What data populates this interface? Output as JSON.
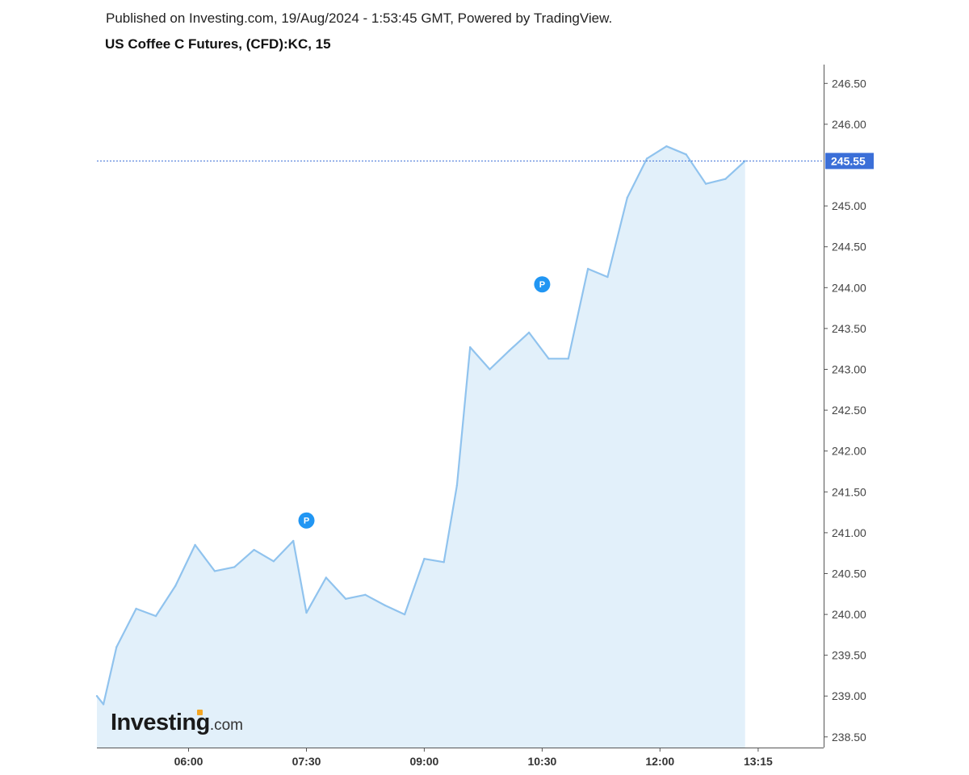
{
  "header": {
    "published": "Published on Investing.com, 19/Aug/2024 - 1:53:45 GMT, Powered by TradingView.",
    "title": "US Coffee C Futures, (CFD):KC, 15"
  },
  "logo": {
    "main": "Investing",
    "suffix": ".com",
    "accent_color": "#f5a623"
  },
  "colors": {
    "line": "#90c3ee",
    "fill": "#e2f0fa",
    "last_price": "#3b6fd8",
    "marker": "#2196f3",
    "axis": "#555555"
  },
  "markers": [
    {
      "label": "P",
      "time_min": 450,
      "price": 241.15
    },
    {
      "label": "P",
      "time_min": 630,
      "price": 244.04
    }
  ],
  "chart_data": {
    "type": "area",
    "title": "US Coffee C Futures, (CFD):KC, 15",
    "x_unit": "minutes since 00:00",
    "x": [
      290,
      295,
      305,
      320,
      335,
      350,
      365,
      380,
      395,
      410,
      425,
      440,
      450,
      465,
      480,
      495,
      510,
      525,
      540,
      555,
      565,
      575,
      590,
      605,
      620,
      635,
      650,
      665,
      680,
      695,
      710,
      725,
      740,
      755,
      770,
      785
    ],
    "y": [
      239.0,
      238.9,
      239.6,
      240.07,
      239.98,
      240.35,
      240.85,
      240.53,
      240.58,
      240.79,
      240.65,
      240.9,
      240.02,
      240.45,
      240.19,
      240.24,
      240.11,
      240.0,
      240.68,
      240.64,
      241.58,
      243.27,
      243.0,
      243.23,
      243.45,
      243.13,
      243.13,
      244.23,
      244.13,
      245.1,
      245.58,
      245.73,
      245.63,
      245.27,
      245.33,
      245.55
    ],
    "last_price": "245.55",
    "xlim": [
      290,
      845
    ],
    "ylim": [
      238.37,
      246.73
    ],
    "y_ticks": [
      "246.50",
      "246.00",
      "245.00",
      "244.50",
      "244.00",
      "243.50",
      "243.00",
      "242.50",
      "242.00",
      "241.50",
      "241.00",
      "240.50",
      "240.00",
      "239.50",
      "239.00",
      "238.50"
    ],
    "x_ticks": [
      {
        "label": "06:00",
        "value": 360
      },
      {
        "label": "07:30",
        "value": 450
      },
      {
        "label": "09:00",
        "value": 540
      },
      {
        "label": "10:30",
        "value": 630
      },
      {
        "label": "12:00",
        "value": 720
      },
      {
        "label": "13:15",
        "value": 795
      }
    ],
    "grid": false,
    "legend": "none"
  }
}
